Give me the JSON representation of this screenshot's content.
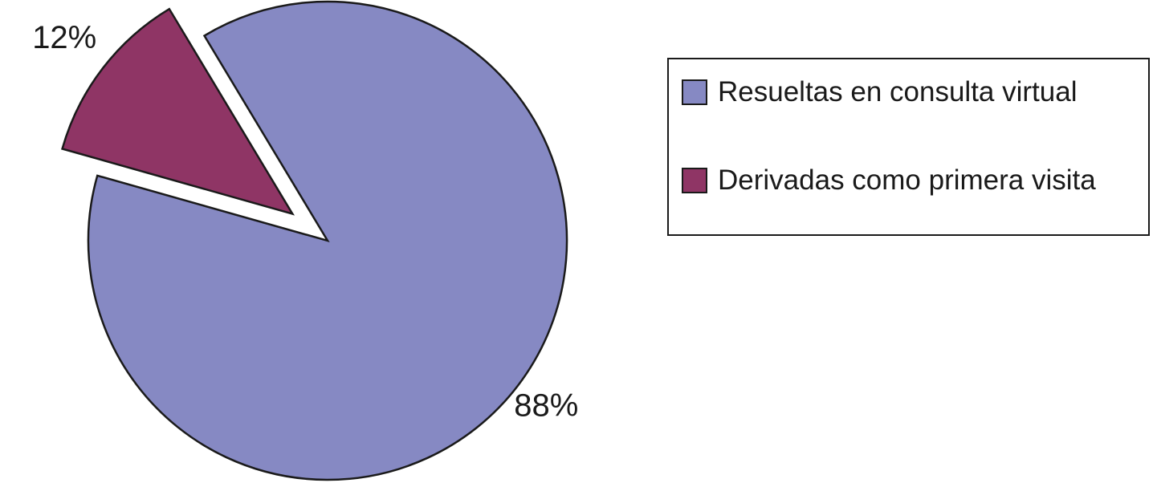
{
  "chart_data": {
    "type": "pie",
    "categories": [
      "Resueltas en consulta virtual",
      "Derivadas como primera visita"
    ],
    "values": [
      88,
      12
    ],
    "value_labels": [
      "88%",
      "12%"
    ],
    "colors": [
      "#8689c3",
      "#8f3565"
    ],
    "legend": "right"
  }
}
